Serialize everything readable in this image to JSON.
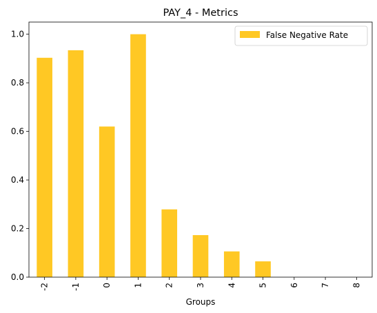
{
  "chart_data": {
    "type": "bar",
    "title": "PAY_4 - Metrics",
    "xlabel": "Groups",
    "ylabel": "",
    "categories": [
      "-2",
      "-1",
      "0",
      "1",
      "2",
      "3",
      "4",
      "5",
      "6",
      "7",
      "8"
    ],
    "series": [
      {
        "name": "False Negative Rate",
        "color": "#ffc824",
        "values": [
          0.903,
          0.934,
          0.62,
          1.0,
          0.279,
          0.173,
          0.106,
          0.065,
          0,
          0,
          0
        ]
      }
    ],
    "ylim": [
      0,
      1.05
    ],
    "yticks": [
      "0.0",
      "0.2",
      "0.4",
      "0.6",
      "0.8",
      "1.0"
    ],
    "grid": false,
    "legend_position": "top-right"
  }
}
